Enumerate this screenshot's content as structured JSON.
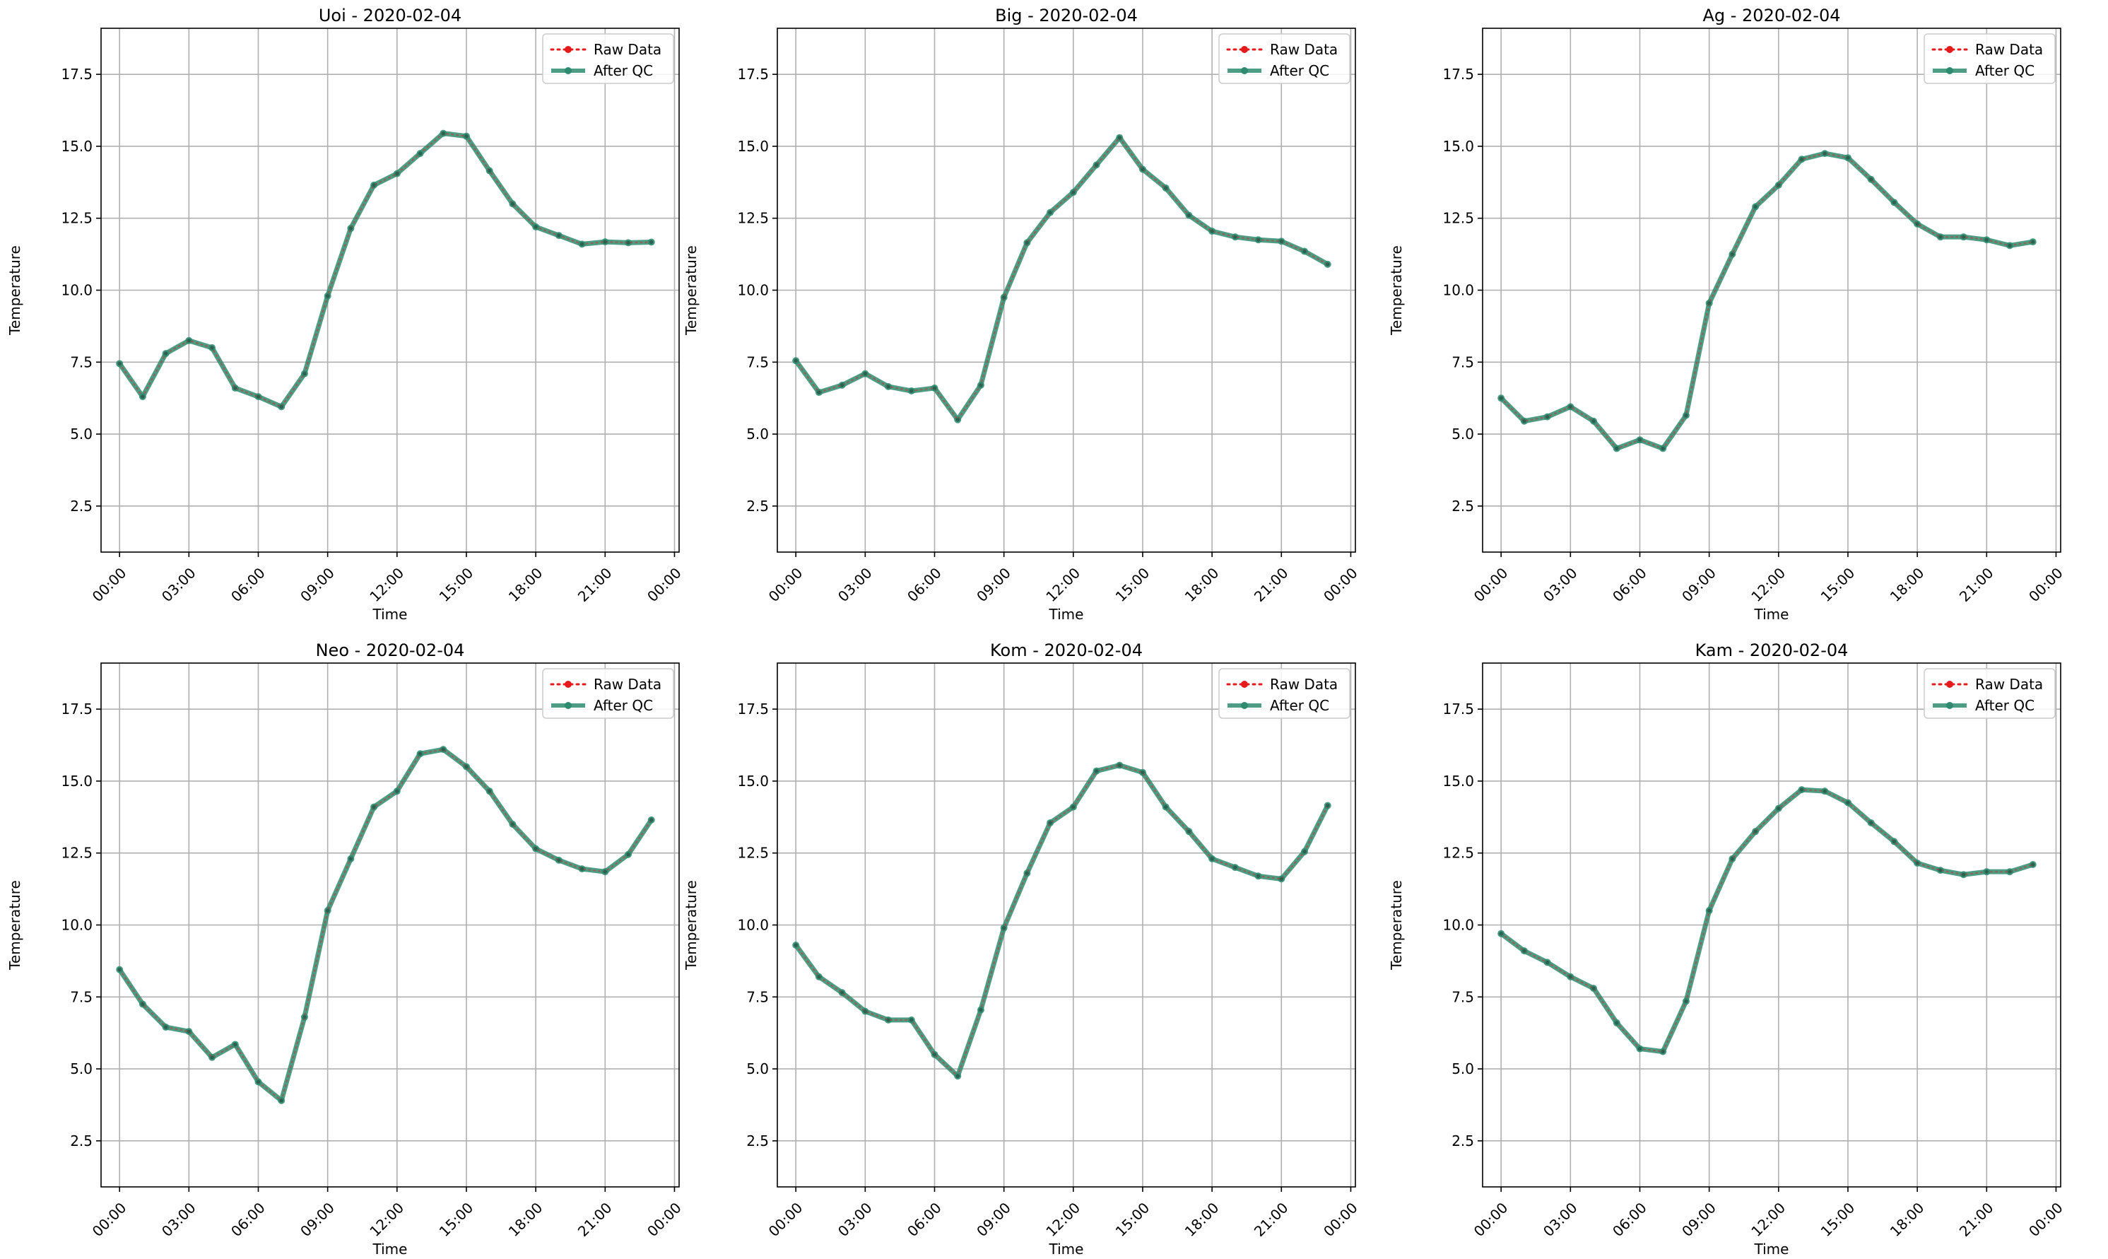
{
  "figure": {
    "x_ticks": [
      "00:00",
      "03:00",
      "06:00",
      "09:00",
      "12:00",
      "15:00",
      "18:00",
      "21:00",
      "00:00"
    ],
    "y_ticks": [
      "2.5",
      "5.0",
      "7.5",
      "10.0",
      "12.5",
      "15.0",
      "17.5"
    ],
    "legend": {
      "raw": "Raw Data",
      "qc": "After QC"
    },
    "colors": {
      "raw": "#e41a1c",
      "qc": "#2e8b6f",
      "grid": "#b0b0b0"
    }
  },
  "chart_data": [
    {
      "type": "line",
      "title": "Uoi - 2020-02-04",
      "xlabel": "Time",
      "ylabel": "Temperature",
      "ylim": [
        0.9,
        19.1
      ],
      "xlim_hours": [
        -0.8,
        24.2
      ],
      "grid": true,
      "legend_position": "top-right",
      "x": [
        "00:00",
        "01:00",
        "02:00",
        "03:00",
        "04:00",
        "05:00",
        "06:00",
        "07:00",
        "08:00",
        "09:00",
        "10:00",
        "11:00",
        "12:00",
        "13:00",
        "14:00",
        "15:00",
        "16:00",
        "17:00",
        "18:00",
        "19:00",
        "20:00",
        "21:00",
        "22:00",
        "23:00"
      ],
      "series": [
        {
          "name": "Raw Data",
          "values": [
            7.45,
            6.3,
            7.8,
            8.25,
            8.0,
            6.6,
            6.3,
            5.95,
            7.1,
            9.8,
            12.15,
            13.65,
            14.05,
            14.75,
            15.45,
            15.35,
            14.15,
            13.0,
            12.2,
            11.9,
            11.6,
            11.68,
            11.65,
            11.67
          ]
        },
        {
          "name": "After QC",
          "values": [
            7.45,
            6.3,
            7.8,
            8.25,
            8.0,
            6.6,
            6.3,
            5.95,
            7.1,
            9.8,
            12.15,
            13.65,
            14.05,
            14.75,
            15.45,
            15.35,
            14.15,
            13.0,
            12.2,
            11.9,
            11.6,
            11.68,
            11.65,
            11.67
          ]
        }
      ]
    },
    {
      "type": "line",
      "title": "Big - 2020-02-04",
      "xlabel": "Time",
      "ylabel": "Temperature",
      "ylim": [
        0.9,
        19.1
      ],
      "xlim_hours": [
        -0.8,
        24.2
      ],
      "grid": true,
      "legend_position": "top-right",
      "x": [
        "00:00",
        "01:00",
        "02:00",
        "03:00",
        "04:00",
        "05:00",
        "06:00",
        "07:00",
        "08:00",
        "09:00",
        "10:00",
        "11:00",
        "12:00",
        "13:00",
        "14:00",
        "15:00",
        "16:00",
        "17:00",
        "18:00",
        "19:00",
        "20:00",
        "21:00",
        "22:00",
        "23:00"
      ],
      "series": [
        {
          "name": "Raw Data",
          "values": [
            7.55,
            6.45,
            6.7,
            7.1,
            6.65,
            6.5,
            6.6,
            5.5,
            6.7,
            9.75,
            11.65,
            12.7,
            13.4,
            14.35,
            15.3,
            14.2,
            13.55,
            12.6,
            12.05,
            11.85,
            11.75,
            11.7,
            11.35,
            10.9
          ]
        },
        {
          "name": "After QC",
          "values": [
            7.55,
            6.45,
            6.7,
            7.1,
            6.65,
            6.5,
            6.6,
            5.5,
            6.7,
            9.75,
            11.65,
            12.7,
            13.4,
            14.35,
            15.3,
            14.2,
            13.55,
            12.6,
            12.05,
            11.85,
            11.75,
            11.7,
            11.35,
            10.9
          ]
        }
      ]
    },
    {
      "type": "line",
      "title": "Ag - 2020-02-04",
      "xlabel": "Time",
      "ylabel": "Temperature",
      "ylim": [
        0.9,
        19.1
      ],
      "xlim_hours": [
        -0.8,
        24.2
      ],
      "grid": true,
      "legend_position": "top-right",
      "x": [
        "00:00",
        "01:00",
        "02:00",
        "03:00",
        "04:00",
        "05:00",
        "06:00",
        "07:00",
        "08:00",
        "09:00",
        "10:00",
        "11:00",
        "12:00",
        "13:00",
        "14:00",
        "15:00",
        "16:00",
        "17:00",
        "18:00",
        "19:00",
        "20:00",
        "21:00",
        "22:00",
        "23:00"
      ],
      "series": [
        {
          "name": "Raw Data",
          "values": [
            6.25,
            5.45,
            5.6,
            5.95,
            5.45,
            4.5,
            4.8,
            4.5,
            5.65,
            9.55,
            11.25,
            12.9,
            13.65,
            14.55,
            14.75,
            14.6,
            13.85,
            13.05,
            12.3,
            11.85,
            11.85,
            11.75,
            11.55,
            11.68
          ]
        },
        {
          "name": "After QC",
          "values": [
            6.25,
            5.45,
            5.6,
            5.95,
            5.45,
            4.5,
            4.8,
            4.5,
            5.65,
            9.55,
            11.25,
            12.9,
            13.65,
            14.55,
            14.75,
            14.6,
            13.85,
            13.05,
            12.3,
            11.85,
            11.85,
            11.75,
            11.55,
            11.68
          ]
        }
      ]
    },
    {
      "type": "line",
      "title": "Neo - 2020-02-04",
      "xlabel": "Time",
      "ylabel": "Temperature",
      "ylim": [
        0.9,
        19.1
      ],
      "xlim_hours": [
        -0.8,
        24.2
      ],
      "grid": true,
      "legend_position": "top-right",
      "x": [
        "00:00",
        "01:00",
        "02:00",
        "03:00",
        "04:00",
        "05:00",
        "06:00",
        "07:00",
        "08:00",
        "09:00",
        "10:00",
        "11:00",
        "12:00",
        "13:00",
        "14:00",
        "15:00",
        "16:00",
        "17:00",
        "18:00",
        "19:00",
        "20:00",
        "21:00",
        "22:00",
        "23:00"
      ],
      "series": [
        {
          "name": "Raw Data",
          "values": [
            8.45,
            7.25,
            6.45,
            6.3,
            5.4,
            5.85,
            4.55,
            3.9,
            6.8,
            10.5,
            12.3,
            14.1,
            14.65,
            15.95,
            16.1,
            15.5,
            14.65,
            13.5,
            12.65,
            12.25,
            11.95,
            11.85,
            12.45,
            13.65
          ]
        },
        {
          "name": "After QC",
          "values": [
            8.45,
            7.25,
            6.45,
            6.3,
            5.4,
            5.85,
            4.55,
            3.9,
            6.8,
            10.5,
            12.3,
            14.1,
            14.65,
            15.95,
            16.1,
            15.5,
            14.65,
            13.5,
            12.65,
            12.25,
            11.95,
            11.85,
            12.45,
            13.65
          ]
        }
      ]
    },
    {
      "type": "line",
      "title": "Kom - 2020-02-04",
      "xlabel": "Time",
      "ylabel": "Temperature",
      "ylim": [
        0.9,
        19.1
      ],
      "xlim_hours": [
        -0.8,
        24.2
      ],
      "grid": true,
      "legend_position": "top-right",
      "x": [
        "00:00",
        "01:00",
        "02:00",
        "03:00",
        "04:00",
        "05:00",
        "06:00",
        "07:00",
        "08:00",
        "09:00",
        "10:00",
        "11:00",
        "12:00",
        "13:00",
        "14:00",
        "15:00",
        "16:00",
        "17:00",
        "18:00",
        "19:00",
        "20:00",
        "21:00",
        "22:00",
        "23:00"
      ],
      "series": [
        {
          "name": "Raw Data",
          "values": [
            9.3,
            8.2,
            7.65,
            7.0,
            6.7,
            6.7,
            5.5,
            4.75,
            7.05,
            9.9,
            11.8,
            13.55,
            14.1,
            15.35,
            15.55,
            15.3,
            14.1,
            13.25,
            12.3,
            12.0,
            11.7,
            11.6,
            12.55,
            14.15
          ]
        },
        {
          "name": "After QC",
          "values": [
            9.3,
            8.2,
            7.65,
            7.0,
            6.7,
            6.7,
            5.5,
            4.75,
            7.05,
            9.9,
            11.8,
            13.55,
            14.1,
            15.35,
            15.55,
            15.3,
            14.1,
            13.25,
            12.3,
            12.0,
            11.7,
            11.6,
            12.55,
            14.15
          ]
        }
      ]
    },
    {
      "type": "line",
      "title": "Kam - 2020-02-04",
      "xlabel": "Time",
      "ylabel": "Temperature",
      "ylim": [
        0.9,
        19.1
      ],
      "xlim_hours": [
        -0.8,
        24.2
      ],
      "grid": true,
      "legend_position": "top-right",
      "x": [
        "00:00",
        "01:00",
        "02:00",
        "03:00",
        "04:00",
        "05:00",
        "06:00",
        "07:00",
        "08:00",
        "09:00",
        "10:00",
        "11:00",
        "12:00",
        "13:00",
        "14:00",
        "15:00",
        "16:00",
        "17:00",
        "18:00",
        "19:00",
        "20:00",
        "21:00",
        "22:00",
        "23:00"
      ],
      "series": [
        {
          "name": "Raw Data",
          "values": [
            9.7,
            9.1,
            8.7,
            8.2,
            7.8,
            6.6,
            5.7,
            5.6,
            7.35,
            10.5,
            12.3,
            13.25,
            14.05,
            14.7,
            14.65,
            14.25,
            13.55,
            12.9,
            12.15,
            11.9,
            11.75,
            11.85,
            11.85,
            12.1
          ]
        },
        {
          "name": "After QC",
          "values": [
            9.7,
            9.1,
            8.7,
            8.2,
            7.8,
            6.6,
            5.7,
            5.6,
            7.35,
            10.5,
            12.3,
            13.25,
            14.05,
            14.7,
            14.65,
            14.25,
            13.55,
            12.9,
            12.15,
            11.9,
            11.75,
            11.85,
            11.85,
            12.1
          ]
        }
      ]
    }
  ]
}
